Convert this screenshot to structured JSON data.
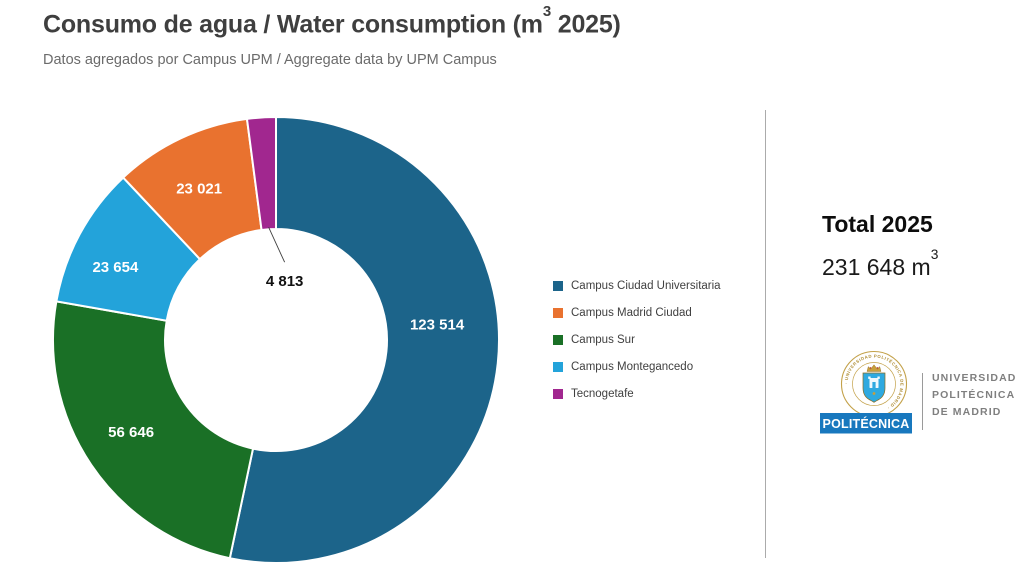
{
  "header": {
    "title_main": "Consumo de agua / Water consumption (m",
    "title_sup": "3",
    "title_tail": " 2025)",
    "subtitle": "Datos agregados por Campus UPM / Aggregate data by UPM Campus"
  },
  "chart_data": {
    "type": "pie",
    "subtype": "donut",
    "title": "Consumo de agua / Water consumption (m³ 2025)",
    "subtitle": "Datos agregados por Campus UPM / Aggregate data by UPM Campus",
    "unit": "m³",
    "year": 2025,
    "start_angle_deg": 0,
    "direction": "clockwise",
    "slices": [
      {
        "label": "Campus Ciudad Universitaria",
        "value": 123514,
        "display": "123 514",
        "color": "#1C648A"
      },
      {
        "label": "Campus Sur",
        "value": 56646,
        "display": "56 646",
        "color": "#1A7026"
      },
      {
        "label": "Campus Montegancedo",
        "value": 23654,
        "display": "23 654",
        "color": "#23A3DA"
      },
      {
        "label": "Campus Madrid Ciudad",
        "value": 23021,
        "display": "23 021",
        "color": "#E9722F"
      },
      {
        "label": "Tecnogetafe",
        "value": 4813,
        "display": "4 813",
        "color": "#A1278F"
      }
    ],
    "legend_order": [
      "Campus Ciudad Universitaria",
      "Campus Madrid Ciudad",
      "Campus Sur",
      "Campus Montegancedo",
      "Tecnogetafe"
    ],
    "legend_position": "right",
    "total": 231648,
    "total_display": "231 648"
  },
  "summary": {
    "total_title": "Total 2025",
    "total_value": "231 648 m",
    "total_sup": "3"
  },
  "logo": {
    "brand_bar": "POLITÉCNICA",
    "org_lines": [
      "UNIVERSIDAD",
      "POLITÉCNICA",
      "DE MADRID"
    ],
    "seal_text": "· UNIVERSIDAD POLITÉCNICA DE MADRID ·",
    "brand_blue": "#1878BE",
    "seal_gold": "#B08E35",
    "seal_blue": "#2EA9E0"
  }
}
